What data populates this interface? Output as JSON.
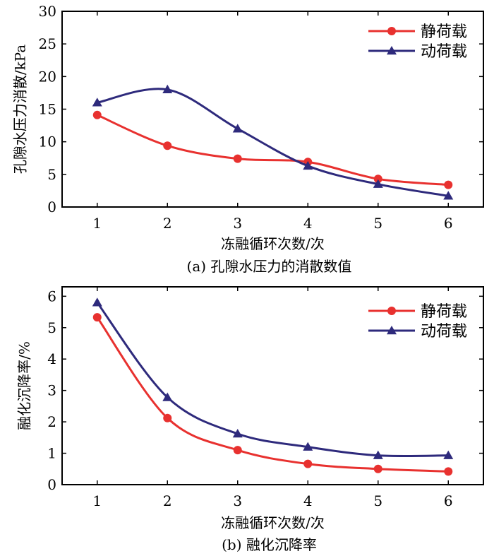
{
  "chart_data": [
    {
      "type": "line",
      "panel": "a",
      "caption": "(a) 孔隙水压力的消散数值",
      "xlabel": "冻融循环次数/次",
      "ylabel": "孔隙水压力消散/kPa",
      "x": [
        1,
        2,
        3,
        4,
        5,
        6
      ],
      "xticks": [
        "1",
        "2",
        "3",
        "4",
        "5",
        "6"
      ],
      "xlim": [
        0.5,
        6.5
      ],
      "ylim": [
        0,
        30
      ],
      "yticks": [
        "0",
        "5",
        "10",
        "15",
        "20",
        "25",
        "30"
      ],
      "legend_position": "top-right",
      "grid": false,
      "series": [
        {
          "name": "静荷载",
          "marker": "circle",
          "color": "#e8312f",
          "values": [
            14.1,
            9.4,
            7.4,
            6.9,
            4.3,
            3.4
          ]
        },
        {
          "name": "动荷载",
          "marker": "triangle",
          "color": "#2e2a7c",
          "values": [
            16.0,
            18.0,
            12.0,
            6.3,
            3.5,
            1.7
          ]
        }
      ]
    },
    {
      "type": "line",
      "panel": "b",
      "caption": "(b) 融化沉降率",
      "xlabel": "冻融循环次数/次",
      "ylabel": "融化沉降率/%",
      "x": [
        1,
        2,
        3,
        4,
        5,
        6
      ],
      "xticks": [
        "1",
        "2",
        "3",
        "4",
        "5",
        "6"
      ],
      "xlim": [
        0.5,
        6.5
      ],
      "ylim": [
        0,
        6.3
      ],
      "yticks": [
        "0",
        "1",
        "2",
        "3",
        "4",
        "5",
        "6"
      ],
      "legend_position": "top-right",
      "grid": false,
      "series": [
        {
          "name": "静荷载",
          "marker": "circle",
          "color": "#e8312f",
          "values": [
            5.33,
            2.12,
            1.1,
            0.66,
            0.5,
            0.42
          ]
        },
        {
          "name": "动荷载",
          "marker": "triangle",
          "color": "#2e2a7c",
          "values": [
            5.8,
            2.78,
            1.62,
            1.2,
            0.93,
            0.93
          ]
        }
      ]
    }
  ]
}
